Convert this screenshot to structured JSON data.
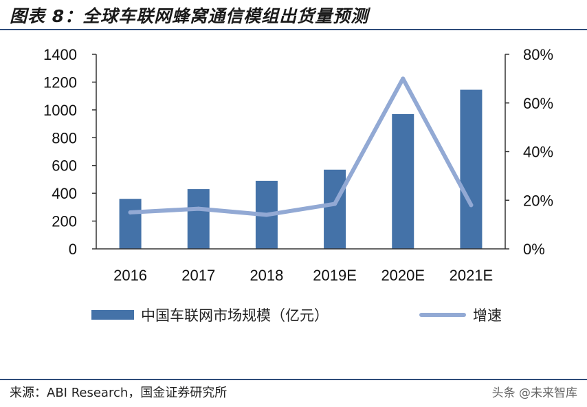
{
  "header": {
    "title": "图表 8：全球车联网蜂窝通信模组出货量预测"
  },
  "chart_data": {
    "type": "bar",
    "categories": [
      "2016",
      "2017",
      "2018",
      "2019E",
      "2020E",
      "2021E"
    ],
    "series": [
      {
        "name": "中国车联网市场规模（亿元）",
        "type": "bar",
        "axis": "left",
        "values": [
          360,
          430,
          490,
          570,
          970,
          1145
        ],
        "color": "#4472a8"
      },
      {
        "name": "增速",
        "type": "line",
        "axis": "right",
        "values": [
          0.15,
          0.165,
          0.14,
          0.185,
          0.7,
          0.18
        ],
        "color": "#92a9d4"
      }
    ],
    "y_left": {
      "ylim": [
        0,
        1400
      ],
      "ticks": [
        "0",
        "200",
        "400",
        "600",
        "800",
        "1000",
        "1200",
        "1400"
      ]
    },
    "y_right": {
      "ylim": [
        0,
        0.8
      ],
      "ticks": [
        "0%",
        "20%",
        "40%",
        "60%",
        "80%"
      ]
    },
    "legend_position": "bottom",
    "grid": false
  },
  "footer": {
    "source": "来源：ABI Research，国金证券研究所",
    "watermark": "头条 @未来智库"
  }
}
